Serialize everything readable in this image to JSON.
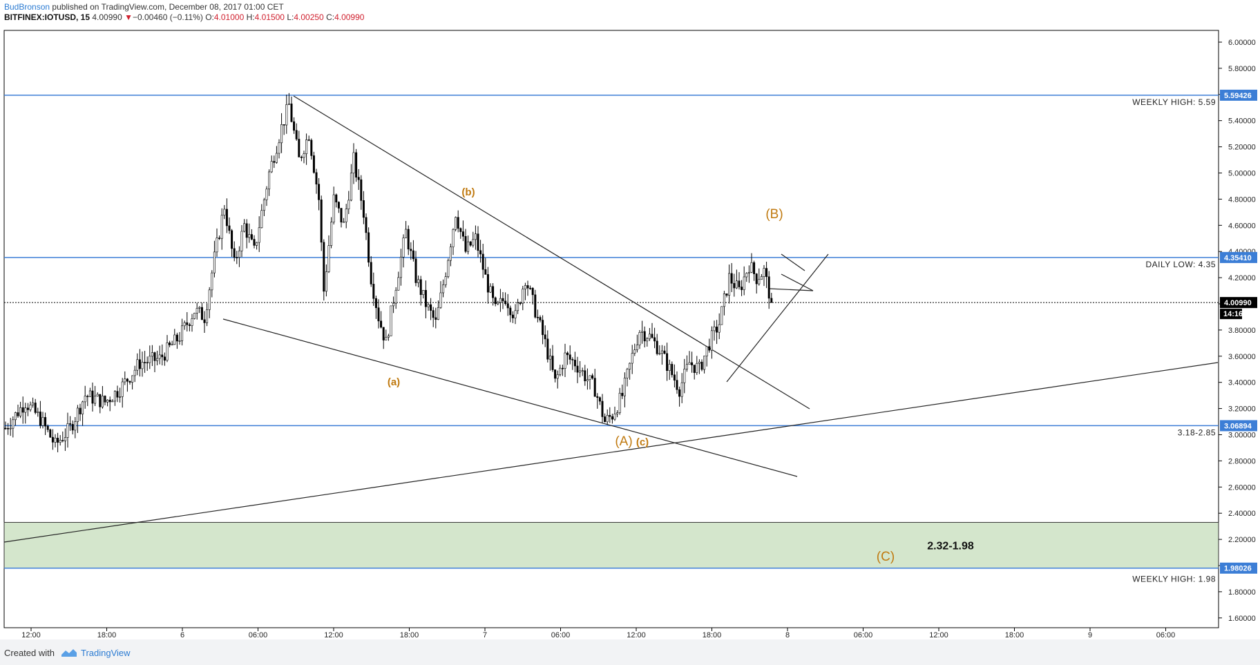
{
  "header": {
    "author": "BudBronson",
    "published": "published on TradingView.com, December 08, 2017 01:00 CET",
    "symbol": "BITFINEX:IOTUSD, 15",
    "last": "4.00990",
    "change_arrow": "▼",
    "change": "−0.00460 (−0.11%)",
    "o_label": "O:",
    "o": "4.01000",
    "h_label": "H:",
    "h": "4.01500",
    "l_label": "L:",
    "l": "4.00250",
    "c_label": "C:",
    "c": "4.00990"
  },
  "footer": {
    "created": "Created with",
    "brand": "TradingView"
  },
  "colors": {
    "hline": "#3c7ed6",
    "zone": "#d4e6cc",
    "wave": "#c07a10",
    "candle": "#000000"
  },
  "chart_data": {
    "type": "candlestick",
    "ylim": [
      1.5,
      6.1
    ],
    "y_ticks": [
      "6.00000",
      "5.80000",
      "5.60000",
      "5.40000",
      "5.20000",
      "5.00000",
      "4.80000",
      "4.60000",
      "4.40000",
      "4.20000",
      "4.00000",
      "3.80000",
      "3.60000",
      "3.40000",
      "3.20000",
      "3.00000",
      "2.80000",
      "2.60000",
      "2.40000",
      "2.20000",
      "2.00000",
      "1.80000",
      "1.60000"
    ],
    "x_ticks": [
      "12:00",
      "18:00",
      "6",
      "06:00",
      "12:00",
      "18:00",
      "7",
      "06:00",
      "12:00",
      "18:00",
      "8",
      "06:00",
      "12:00",
      "18:00",
      "9",
      "06:00"
    ],
    "price_tags": [
      {
        "value": 5.59426,
        "label": "5.59426"
      },
      {
        "value": 4.3541,
        "label": "4.35410"
      },
      {
        "value": 4.0099,
        "label": "4.00990"
      },
      {
        "value": 3.06894,
        "label": "3.06894"
      },
      {
        "value": 1.98026,
        "label": "1.98026"
      }
    ],
    "countdown": "14:16",
    "levels": [
      {
        "value": 5.59426,
        "label": "WEEKLY HIGH: 5.59"
      },
      {
        "value": 4.3541,
        "label": "DAILY LOW: 4.35"
      },
      {
        "value": 3.06894,
        "label": "3.18-2.85"
      },
      {
        "value": 1.98026,
        "label": "WEEKLY HIGH: 1.98"
      }
    ],
    "last_price": 4.0099,
    "zone": {
      "top": 2.33,
      "bottom": 1.98026,
      "label": "2.32-1.98"
    },
    "wave_labels": [
      "(b)",
      "(a)",
      "(B)",
      "(A)",
      "(c)",
      "(C)"
    ],
    "anchors": [
      {
        "t": 0,
        "v": 3.05
      },
      {
        "t": 8,
        "v": 3.25
      },
      {
        "t": 14,
        "v": 3.12
      },
      {
        "t": 20,
        "v": 2.92
      },
      {
        "t": 26,
        "v": 3.05
      },
      {
        "t": 32,
        "v": 3.3
      },
      {
        "t": 40,
        "v": 3.25
      },
      {
        "t": 46,
        "v": 3.35
      },
      {
        "t": 54,
        "v": 3.55
      },
      {
        "t": 62,
        "v": 3.58
      },
      {
        "t": 70,
        "v": 3.75
      },
      {
        "t": 76,
        "v": 3.95
      },
      {
        "t": 80,
        "v": 3.9
      },
      {
        "t": 84,
        "v": 4.35
      },
      {
        "t": 88,
        "v": 4.75
      },
      {
        "t": 92,
        "v": 4.3
      },
      {
        "t": 96,
        "v": 4.6
      },
      {
        "t": 100,
        "v": 4.4
      },
      {
        "t": 106,
        "v": 5.0
      },
      {
        "t": 111,
        "v": 5.35
      },
      {
        "t": 114,
        "v": 5.52
      },
      {
        "t": 118,
        "v": 5.1
      },
      {
        "t": 122,
        "v": 5.3
      },
      {
        "t": 126,
        "v": 4.8
      },
      {
        "t": 128,
        "v": 4.1
      },
      {
        "t": 132,
        "v": 4.8
      },
      {
        "t": 136,
        "v": 4.6
      },
      {
        "t": 140,
        "v": 5.1
      },
      {
        "t": 144,
        "v": 4.7
      },
      {
        "t": 147,
        "v": 4.2
      },
      {
        "t": 150,
        "v": 3.9
      },
      {
        "t": 153,
        "v": 3.7
      },
      {
        "t": 157,
        "v": 4.15
      },
      {
        "t": 161,
        "v": 4.55
      },
      {
        "t": 165,
        "v": 4.2
      },
      {
        "t": 169,
        "v": 4.0
      },
      {
        "t": 173,
        "v": 3.85
      },
      {
        "t": 177,
        "v": 4.25
      },
      {
        "t": 181,
        "v": 4.7
      },
      {
        "t": 185,
        "v": 4.4
      },
      {
        "t": 189,
        "v": 4.5
      },
      {
        "t": 193,
        "v": 4.2
      },
      {
        "t": 197,
        "v": 3.95
      },
      {
        "t": 201,
        "v": 4.05
      },
      {
        "t": 205,
        "v": 3.9
      },
      {
        "t": 209,
        "v": 4.2
      },
      {
        "t": 213,
        "v": 3.95
      },
      {
        "t": 217,
        "v": 3.7
      },
      {
        "t": 221,
        "v": 3.4
      },
      {
        "t": 225,
        "v": 3.6
      },
      {
        "t": 229,
        "v": 3.55
      },
      {
        "t": 233,
        "v": 3.45
      },
      {
        "t": 237,
        "v": 3.35
      },
      {
        "t": 241,
        "v": 3.1
      },
      {
        "t": 244,
        "v": 3.15
      },
      {
        "t": 248,
        "v": 3.3
      },
      {
        "t": 252,
        "v": 3.6
      },
      {
        "t": 255,
        "v": 3.8
      },
      {
        "t": 259,
        "v": 3.75
      },
      {
        "t": 263,
        "v": 3.65
      },
      {
        "t": 267,
        "v": 3.5
      },
      {
        "t": 271,
        "v": 3.35
      },
      {
        "t": 275,
        "v": 3.55
      },
      {
        "t": 279,
        "v": 3.5
      },
      {
        "t": 283,
        "v": 3.7
      },
      {
        "t": 287,
        "v": 3.85
      },
      {
        "t": 291,
        "v": 4.2
      },
      {
        "t": 295,
        "v": 4.1
      },
      {
        "t": 299,
        "v": 4.3
      },
      {
        "t": 302,
        "v": 4.2
      },
      {
        "t": 305,
        "v": 4.25
      },
      {
        "t": 308,
        "v": 4.01
      }
    ]
  }
}
